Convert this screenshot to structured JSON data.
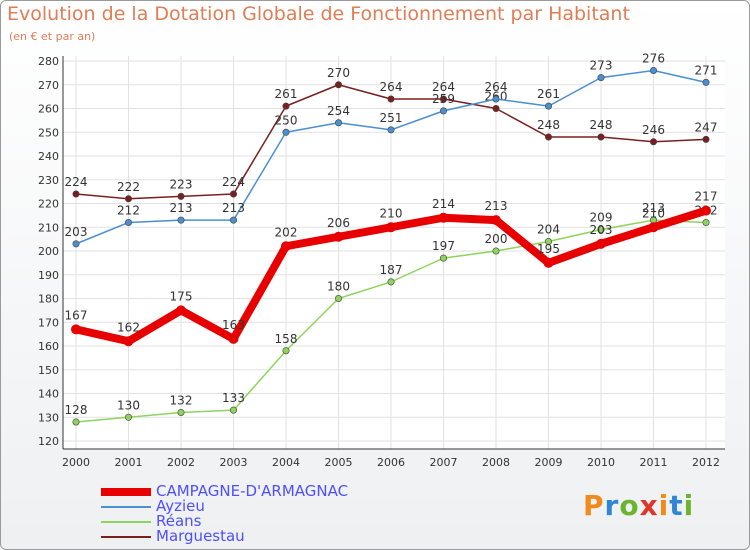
{
  "header": {
    "title": "Evolution de la Dotation Globale de Fonctionnement par Habitant",
    "subtitle": "(en € et par an)"
  },
  "logo": {
    "text": "Proxiti",
    "colors": [
      "#f08a1a",
      "#2f86d4",
      "#6bb52e",
      "#e0362a"
    ]
  },
  "chart_data": {
    "type": "line",
    "title": "Evolution de la Dotation Globale de Fonctionnement par Habitant",
    "subtitle": "(en € et par an)",
    "xlabel": "",
    "ylabel": "",
    "x": [
      "2000",
      "2001",
      "2002",
      "2003",
      "2004",
      "2005",
      "2006",
      "2007",
      "2008",
      "2009",
      "2010",
      "2011",
      "2012"
    ],
    "yticks": [
      120,
      130,
      140,
      150,
      160,
      170,
      180,
      190,
      200,
      210,
      220,
      230,
      240,
      250,
      260,
      270,
      280
    ],
    "ylim": [
      120,
      280
    ],
    "grid": true,
    "legend": "bottom-left",
    "series": [
      {
        "name": "Marguestau",
        "color": "#7a1f1f",
        "values": [
          224,
          222,
          223,
          224,
          261,
          270,
          264,
          264,
          260,
          248,
          248,
          246,
          247
        ],
        "labels": [
          "224",
          "222",
          "223",
          "224",
          "261",
          "270",
          "264",
          "264",
          "260",
          "248",
          "248",
          "246",
          "247"
        ]
      },
      {
        "name": "Ayzieu",
        "color": "#4a8fd0",
        "values": [
          203,
          212,
          213,
          213,
          250,
          254,
          251,
          259,
          264,
          261,
          273,
          276,
          271
        ],
        "labels": [
          "203",
          "212",
          "213",
          "213",
          "250",
          "254",
          "251",
          "259",
          "264",
          "261",
          "273",
          "276",
          "271"
        ]
      },
      {
        "name": "Réans",
        "color": "#8fd35f",
        "values": [
          128,
          130,
          132,
          133,
          158,
          180,
          187,
          197,
          200,
          204,
          209,
          213,
          212
        ],
        "labels": [
          "128",
          "130",
          "132",
          "133",
          "158",
          "180",
          "187",
          "197",
          "200",
          "204",
          "209",
          "213",
          "212"
        ]
      },
      {
        "name": "CAMPAGNE-D'ARMAGNAC",
        "color": "#e80000",
        "values": [
          167,
          162,
          175,
          163,
          202,
          206,
          210,
          214,
          213,
          195,
          203,
          210,
          217
        ],
        "labels": [
          "167",
          "162",
          "175",
          "163",
          "202",
          "206",
          "210",
          "214",
          "213",
          "195",
          "203",
          "210",
          "217"
        ]
      }
    ],
    "legend_order": [
      "CAMPAGNE-D'ARMAGNAC",
      "Ayzieu",
      "Réans",
      "Marguestau"
    ]
  }
}
